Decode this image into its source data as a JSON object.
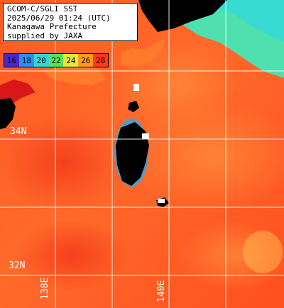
{
  "info": {
    "line1": "GCOM-C/SGLI SST",
    "line2": "2025/06/29 01:24 (UTC)",
    "line3": "Kanagawa Prefecture",
    "line4": "supplied by JAXA"
  },
  "legend": {
    "ticks": [
      {
        "label": "16",
        "color": "#4a28c8"
      },
      {
        "label": "18",
        "color": "#2a8ff0"
      },
      {
        "label": "20",
        "color": "#36d6d6"
      },
      {
        "label": "22",
        "color": "#5ce05c"
      },
      {
        "label": "24",
        "color": "#e8e83a"
      },
      {
        "label": "26",
        "color": "#ff9a1f"
      },
      {
        "label": "28",
        "color": "#ff3a1a"
      }
    ]
  },
  "grid": {
    "lat_labels": [
      "34N",
      "32N"
    ],
    "lon_labels": [
      "138E",
      "140E"
    ]
  },
  "colors": {
    "sea_main": "#ff6a2a",
    "sea_warm": "#ff4a1f",
    "sea_cool": "#ff9a3a",
    "land": "#000000",
    "cold_coast": "#40e0c0",
    "grid_line": "#ffffff"
  }
}
